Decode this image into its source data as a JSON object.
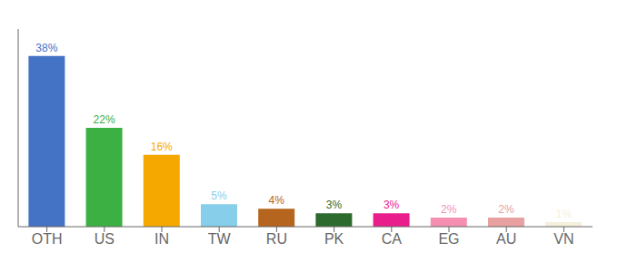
{
  "chart_data": {
    "type": "bar",
    "categories": [
      "OTH",
      "US",
      "IN",
      "TW",
      "RU",
      "PK",
      "CA",
      "EG",
      "AU",
      "VN"
    ],
    "values": [
      38,
      22,
      16,
      5,
      4,
      3,
      3,
      2,
      2,
      1
    ],
    "value_labels": [
      "38%",
      "22%",
      "16%",
      "5%",
      "4%",
      "3%",
      "3%",
      "2%",
      "2%",
      "1%"
    ],
    "colors": [
      "#4472c4",
      "#3cb043",
      "#f5a800",
      "#87ceeb",
      "#b5651d",
      "#2d6a2d",
      "#e91e8c",
      "#f48fb1",
      "#e8a0a0",
      "#f5f0dc"
    ],
    "ylim": [
      0,
      44
    ],
    "data_labels": true,
    "tick_labels": "x",
    "grid": false
  }
}
